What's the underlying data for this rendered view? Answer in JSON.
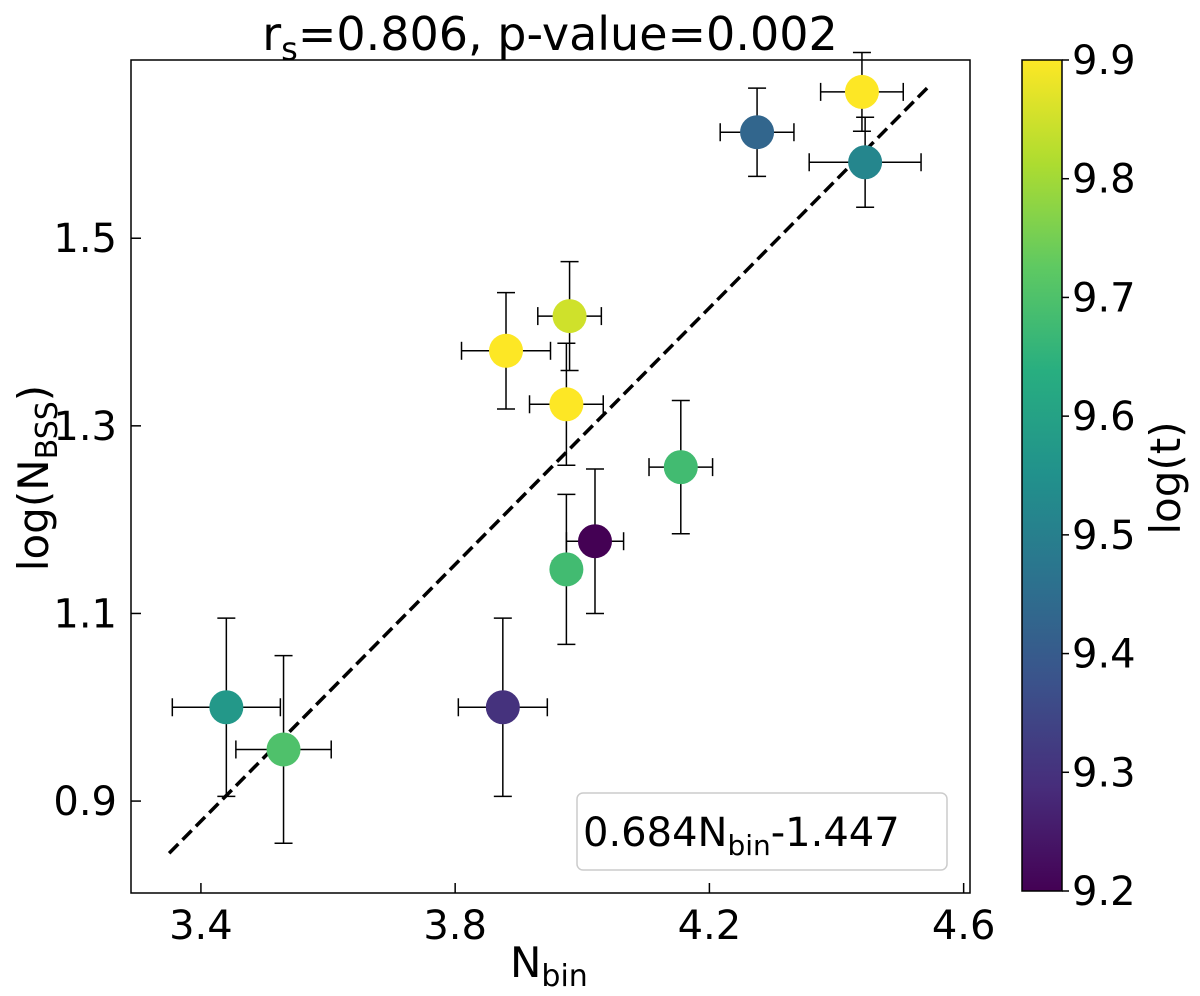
{
  "chart_data": {
    "type": "scatter",
    "title": {
      "prefix": "r",
      "subscript": "s",
      "suffix": "=0.806, p-value=0.002"
    },
    "xlabel": {
      "main": "N",
      "subscript": "bin"
    },
    "ylabel": {
      "main": "log(N",
      "subscript": "BSS",
      "suffix": ")"
    },
    "xlim": [
      3.29,
      4.61
    ],
    "ylim": [
      0.802,
      1.69
    ],
    "xticks": [
      3.4,
      3.8,
      4.2,
      4.6
    ],
    "xtick_labels": [
      "3.4",
      "3.8",
      "4.2",
      "4.6"
    ],
    "yticks": [
      0.9,
      1.1,
      1.3,
      1.5
    ],
    "ytick_labels": [
      "0.9",
      "1.1",
      "1.3",
      "1.5"
    ],
    "colorbar": {
      "label": "log(t)",
      "min": 9.2,
      "max": 9.9,
      "ticks": [
        9.2,
        9.3,
        9.4,
        9.5,
        9.6,
        9.7,
        9.8,
        9.9
      ],
      "tick_labels": [
        "9.2",
        "9.3",
        "9.4",
        "9.5",
        "9.6",
        "9.7",
        "9.8",
        "9.9"
      ],
      "colormap": "viridis"
    },
    "points": [
      {
        "x": 3.44,
        "y": 1.0,
        "xerr": 0.085,
        "yerr": 0.095,
        "c": 9.57
      },
      {
        "x": 3.53,
        "y": 0.955,
        "xerr": 0.075,
        "yerr": 0.1,
        "c": 9.7
      },
      {
        "x": 3.875,
        "y": 1.0,
        "xerr": 0.07,
        "yerr": 0.095,
        "c": 9.3
      },
      {
        "x": 3.88,
        "y": 1.38,
        "xerr": 0.07,
        "yerr": 0.062,
        "c": 9.9
      },
      {
        "x": 3.98,
        "y": 1.417,
        "xerr": 0.05,
        "yerr": 0.058,
        "c": 9.85
      },
      {
        "x": 3.975,
        "y": 1.323,
        "xerr": 0.058,
        "yerr": 0.065,
        "c": 9.9
      },
      {
        "x": 3.975,
        "y": 1.147,
        "xerr": 0.022,
        "yerr": 0.08,
        "c": 9.68
      },
      {
        "x": 4.02,
        "y": 1.177,
        "xerr": 0.045,
        "yerr": 0.077,
        "c": 9.2
      },
      {
        "x": 4.155,
        "y": 1.256,
        "xerr": 0.05,
        "yerr": 0.071,
        "c": 9.68
      },
      {
        "x": 4.275,
        "y": 1.613,
        "xerr": 0.058,
        "yerr": 0.047,
        "c": 9.43
      },
      {
        "x": 4.44,
        "y": 1.656,
        "xerr": 0.065,
        "yerr": 0.042,
        "c": 9.9
      },
      {
        "x": 4.445,
        "y": 1.581,
        "xerr": 0.088,
        "yerr": 0.048,
        "c": 9.52
      }
    ],
    "fit": {
      "slope": 0.684,
      "intercept": -1.447,
      "x_range": [
        3.35,
        4.545
      ],
      "style": "dashed",
      "color": "#000000"
    },
    "legend_box": {
      "position": "lower-right",
      "text_prefix": "0.684N",
      "text_subscript": "bin",
      "text_suffix": "-1.447"
    }
  }
}
